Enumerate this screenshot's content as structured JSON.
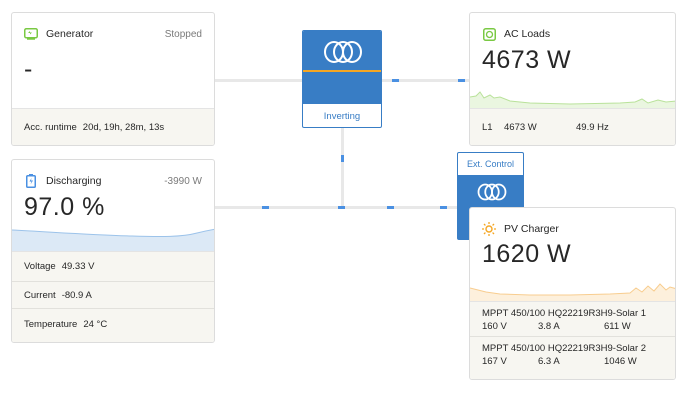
{
  "generator": {
    "title": "Generator",
    "status": "Stopped",
    "value": "-",
    "runtime_label": "Acc. runtime",
    "runtime_value": "20d, 19h, 28m, 13s"
  },
  "battery": {
    "title": "Discharging",
    "power": "-3990 W",
    "soc": "97.0 %",
    "soc_fraction": 0.97,
    "voltage_label": "Voltage",
    "voltage_value": "49.33 V",
    "current_label": "Current",
    "current_value": "-80.9 A",
    "temperature_label": "Temperature",
    "temperature_value": "24 °C"
  },
  "inverter": {
    "status": "Inverting"
  },
  "ext_control": {
    "label": "Ext. Control"
  },
  "ac_loads": {
    "title": "AC Loads",
    "value": "4673 W",
    "phase_label": "L1",
    "phase_power": "4673 W",
    "phase_freq": "49.9 Hz"
  },
  "pv_charger": {
    "title": "PV Charger",
    "value": "1620 W",
    "chargers": [
      {
        "name": "MPPT 450/100 HQ22219R3H9-Solar 1",
        "voltage": "160 V",
        "current": "3.8 A",
        "power": "611 W"
      },
      {
        "name": "MPPT 450/100 HQ22219R3H9-Solar 2",
        "voltage": "167 V",
        "current": "6.3 A",
        "power": "1046 W"
      }
    ]
  },
  "colors": {
    "accent_blue": "#387dc5",
    "flow_blue": "#4a90e2",
    "orange": "#f5a623",
    "green": "#7ac943",
    "footer_bg": "#f7f6f1"
  }
}
